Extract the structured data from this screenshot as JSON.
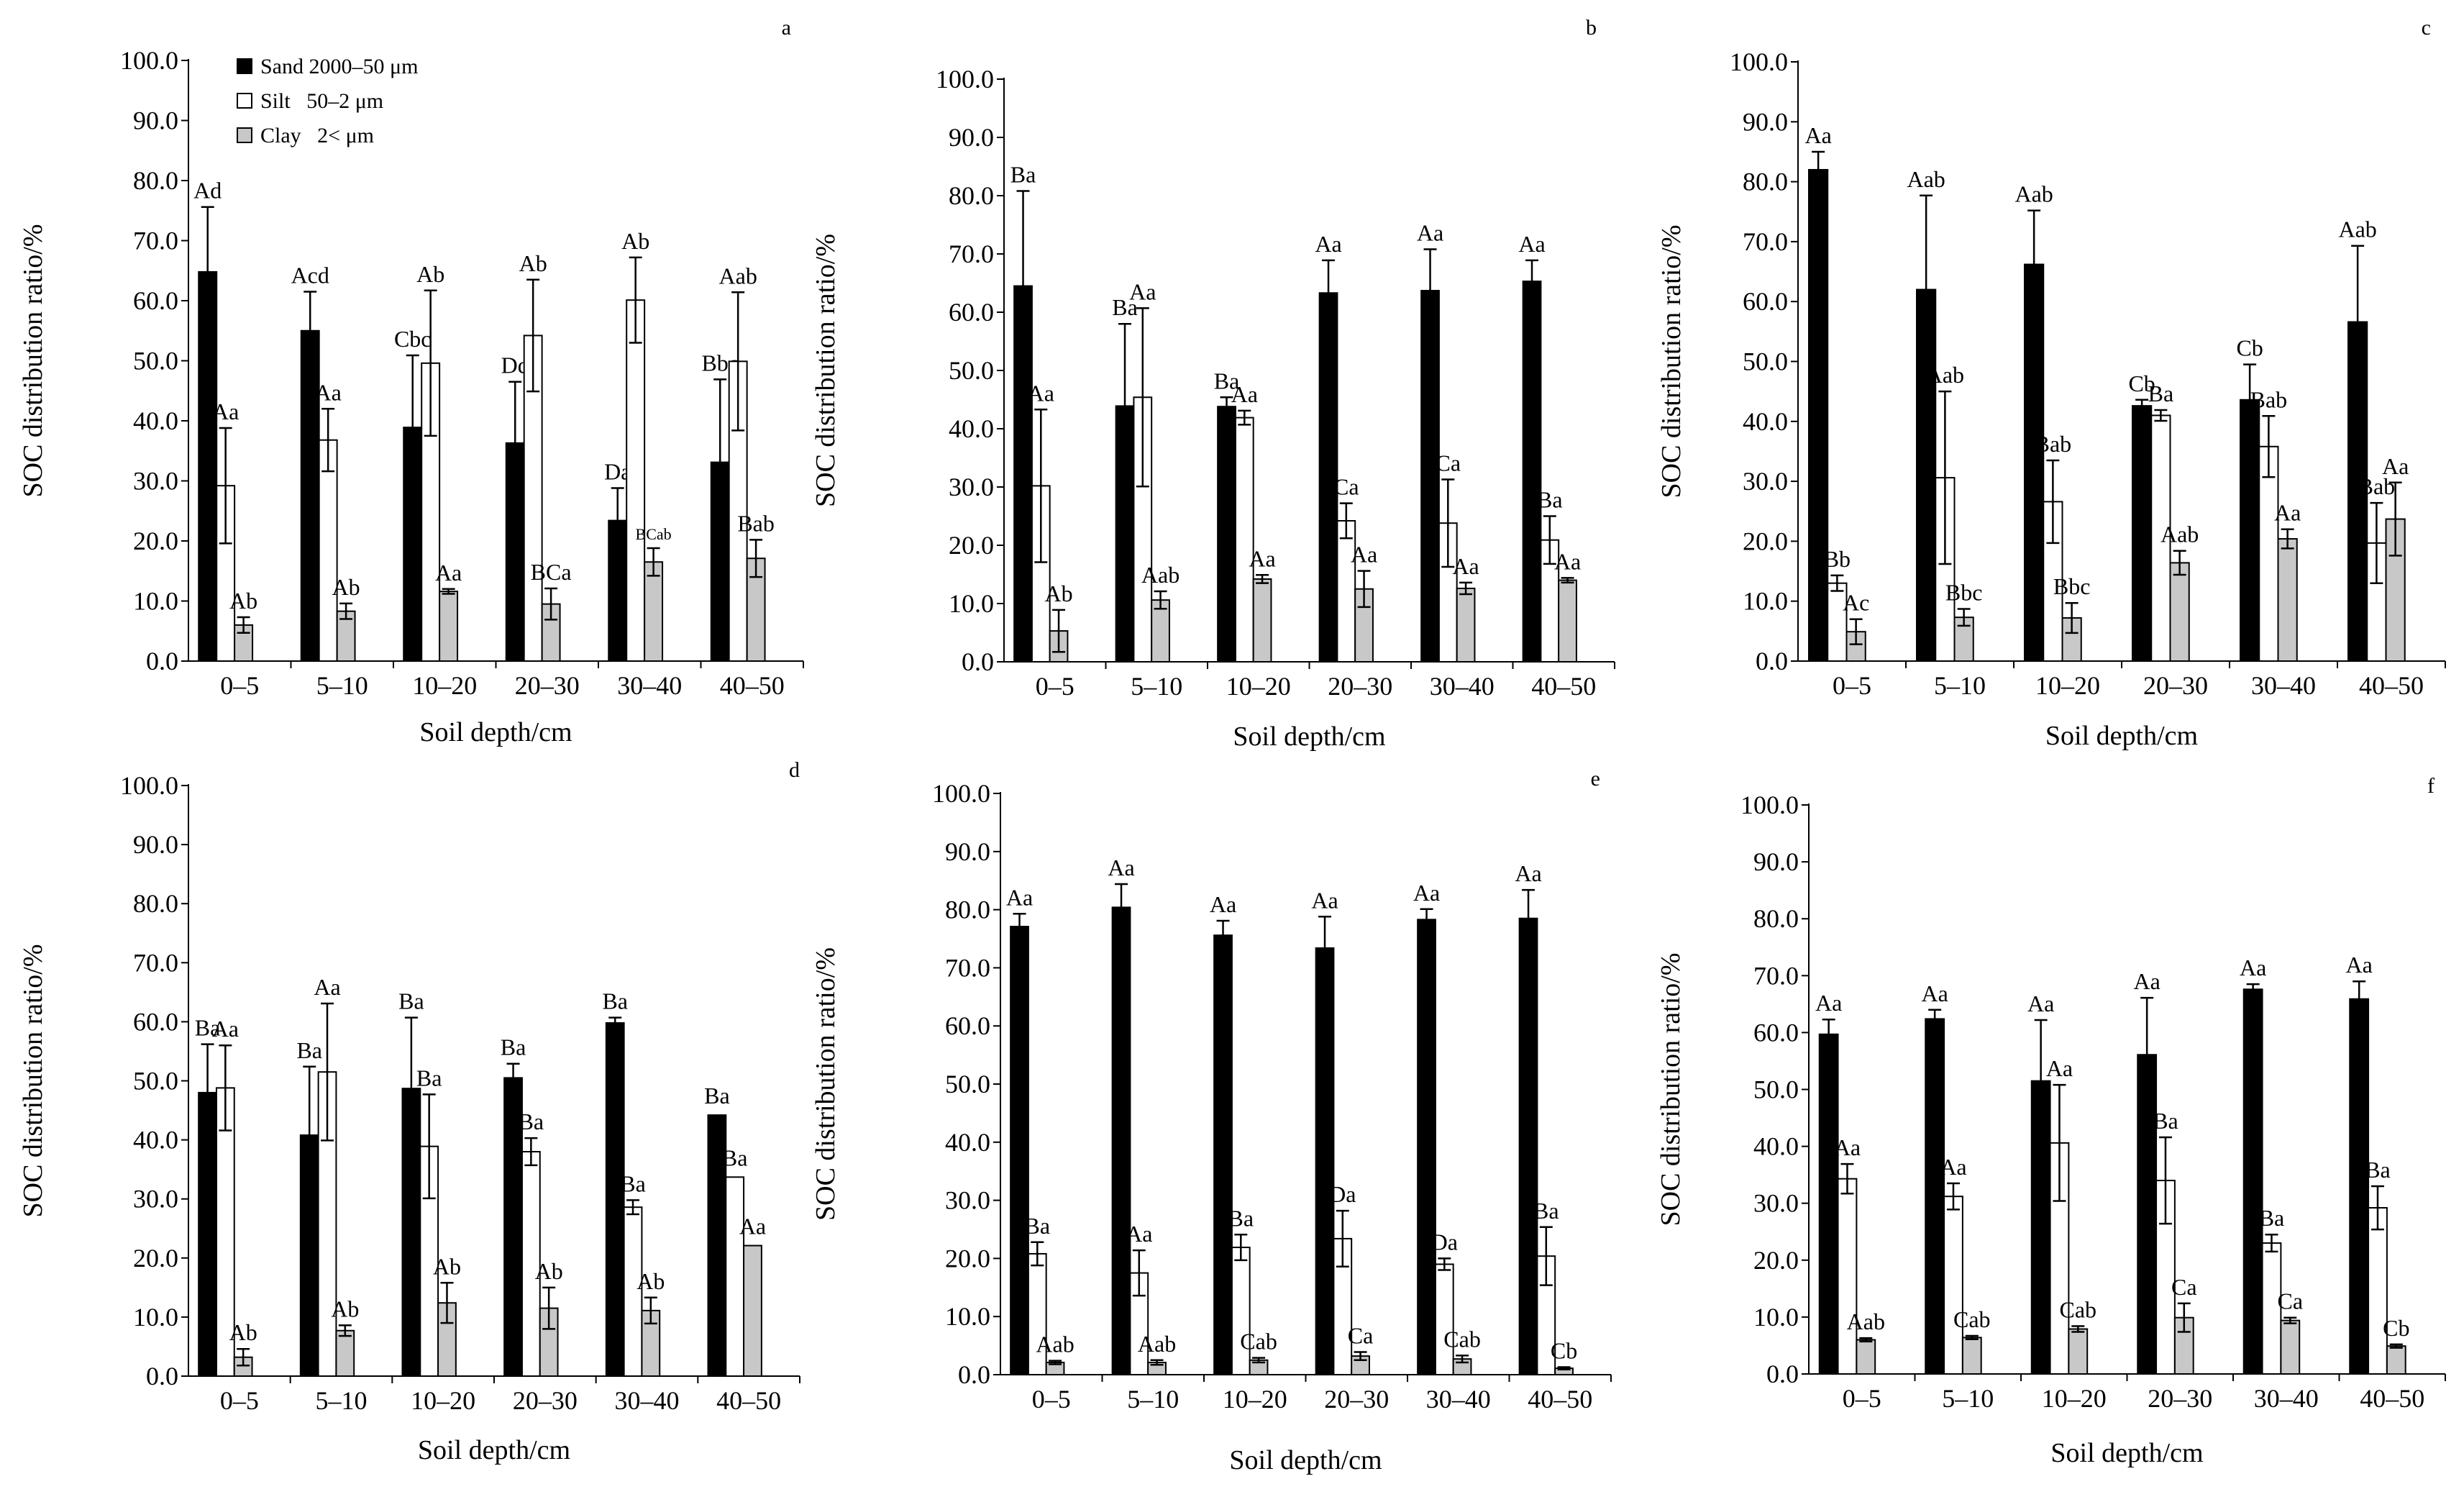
{
  "legend": [
    {
      "label": "Sand 2000–50 μm",
      "color": "#000000"
    },
    {
      "label": "Silt   50–2 μm",
      "color": "#ffffff"
    },
    {
      "label": "Clay   2< μm",
      "color": "#c8c8c8"
    }
  ],
  "chart_data": [
    {
      "type": "bar",
      "panel": "a",
      "categories": [
        "0–5",
        "5–10",
        "10–20",
        "20–30",
        "30–40",
        "40–50"
      ],
      "xlabel": "Soil depth/cm",
      "ylabel": "SOC distribution ratio/%",
      "ylim": [
        0,
        100
      ],
      "yticks": [
        "0.0",
        "10.0",
        "20.0",
        "30.0",
        "40.0",
        "50.0",
        "60.0",
        "70.0",
        "80.0",
        "90.0",
        "100.0"
      ],
      "series": [
        {
          "name": "Sand 2000–50 μm",
          "values": [
            64.8,
            55.0,
            38.9,
            36.3,
            23.4,
            33.1
          ],
          "errors": [
            10.8,
            6.5,
            12.0,
            10.2,
            5.4,
            13.8
          ],
          "labels": [
            "Ad",
            "Acd",
            "Cbc",
            "Dd",
            "Da",
            "Bbc"
          ]
        },
        {
          "name": "Silt 50–2 μm",
          "values": [
            29.2,
            36.8,
            49.6,
            54.2,
            60.1,
            49.9
          ],
          "errors": [
            9.6,
            5.2,
            12.1,
            9.3,
            7.1,
            11.5
          ],
          "labels": [
            "Aa",
            "Aa",
            "Ab",
            "Ab",
            "Ab",
            "Aab"
          ]
        },
        {
          "name": "Clay 2< μm",
          "values": [
            6.0,
            8.3,
            11.6,
            9.5,
            16.5,
            17.1
          ],
          "errors": [
            1.3,
            1.3,
            0.4,
            2.6,
            2.3,
            3.1
          ],
          "labels": [
            "Ab",
            "Ab",
            "Aa",
            "BCa",
            "BCab",
            "Bab"
          ]
        }
      ]
    },
    {
      "type": "bar",
      "panel": "b",
      "categories": [
        "0–5",
        "5–10",
        "10–20",
        "20–30",
        "30–40",
        "40–50"
      ],
      "xlabel": "Soil depth/cm",
      "ylabel": "SOC distribution ratio/%",
      "ylim": [
        0,
        100
      ],
      "yticks": [
        "0.0",
        "10.0",
        "20.0",
        "30.0",
        "40.0",
        "50.0",
        "60.0",
        "70.0",
        "80.0",
        "90.0",
        "100.0"
      ],
      "series": [
        {
          "name": "Sand 2000–50 μm",
          "values": [
            64.5,
            43.9,
            43.8,
            63.3,
            63.7,
            65.3
          ],
          "errors": [
            16.3,
            14.1,
            1.6,
            5.6,
            7.1,
            3.6
          ],
          "labels": [
            "Ba",
            "Ba",
            "Ba",
            "Aa",
            "Aa",
            "Aa"
          ]
        },
        {
          "name": "Silt 50–2 μm",
          "values": [
            30.2,
            45.4,
            41.9,
            24.2,
            23.8,
            20.9
          ],
          "errors": [
            13.1,
            15.3,
            1.2,
            3.0,
            7.5,
            4.1
          ],
          "labels": [
            "Aa",
            "Aa",
            "Aa",
            "Ca",
            "Ca",
            "Ba"
          ]
        },
        {
          "name": "Clay 2< μm",
          "values": [
            5.3,
            10.6,
            14.2,
            12.5,
            12.6,
            14.0
          ],
          "errors": [
            3.6,
            1.5,
            0.7,
            3.1,
            1.0,
            0.4
          ],
          "labels": [
            "Ab",
            "Aab",
            "Aa",
            "Aa",
            "Aa",
            "Aa"
          ]
        }
      ]
    },
    {
      "type": "bar",
      "panel": "c",
      "categories": [
        "0–5",
        "5–10",
        "10–20",
        "20–30",
        "30–40",
        "40–50"
      ],
      "xlabel": "Soil depth/cm",
      "ylabel": "SOC distribution ratio/%",
      "ylim": [
        0,
        100
      ],
      "yticks": [
        "0.0",
        "10.0",
        "20.0",
        "30.0",
        "40.0",
        "50.0",
        "60.0",
        "70.0",
        "80.0",
        "90.0",
        "100.0"
      ],
      "series": [
        {
          "name": "Sand 2000–50 μm",
          "values": [
            82.0,
            62.0,
            66.2,
            42.6,
            43.6,
            56.6
          ],
          "errors": [
            3.0,
            15.7,
            9.0,
            1.0,
            5.9,
            12.7
          ],
          "labels": [
            "Aa",
            "Aab",
            "Aab",
            "Cb",
            "Cb",
            "Aab"
          ]
        },
        {
          "name": "Silt 50–2 μm",
          "values": [
            13.0,
            30.6,
            26.6,
            41.0,
            35.8,
            19.7
          ],
          "errors": [
            1.3,
            14.4,
            6.9,
            0.9,
            5.1,
            6.7
          ],
          "labels": [
            "Bb",
            "Aab",
            "Bab",
            "Ba",
            "Bab",
            "Bab"
          ]
        },
        {
          "name": "Clay 2< μm",
          "values": [
            4.9,
            7.3,
            7.2,
            16.4,
            20.4,
            23.7
          ],
          "errors": [
            2.1,
            1.4,
            2.5,
            2.0,
            1.6,
            6.1
          ],
          "labels": [
            "Ac",
            "Bbc",
            "Bbc",
            "Aab",
            "Aa",
            "Aa"
          ]
        }
      ]
    },
    {
      "type": "bar",
      "panel": "d",
      "categories": [
        "0–5",
        "5–10",
        "10–20",
        "20–30",
        "30–40",
        "40–50"
      ],
      "xlabel": "Soil depth/cm",
      "ylabel": "SOC distribution ratio/%",
      "ylim": [
        0,
        100
      ],
      "yticks": [
        "0.0",
        "10.0",
        "20.0",
        "30.0",
        "40.0",
        "50.0",
        "60.0",
        "70.0",
        "80.0",
        "90.0",
        "100.0"
      ],
      "series": [
        {
          "name": "Sand 2000–50 μm",
          "values": [
            48.0,
            40.8,
            48.7,
            50.5,
            59.8,
            44.2
          ],
          "errors": [
            8.2,
            11.6,
            12.0,
            2.4,
            0.9,
            0
          ],
          "labels": [
            "Ba",
            "Ba",
            "Ba",
            "Ba",
            "Ba",
            "Ba"
          ]
        },
        {
          "name": "Silt 50–2 μm",
          "values": [
            48.8,
            51.5,
            38.9,
            38.0,
            28.6,
            33.7
          ],
          "errors": [
            7.2,
            11.6,
            8.8,
            2.3,
            1.2,
            0
          ],
          "labels": [
            "Aa",
            "Aa",
            "Ba",
            "Ba",
            "Ba",
            "Ba"
          ]
        },
        {
          "name": "Clay 2< μm",
          "values": [
            3.2,
            7.7,
            12.4,
            11.5,
            11.1,
            22.1
          ],
          "errors": [
            1.4,
            0.9,
            3.4,
            3.5,
            2.2,
            0
          ],
          "labels": [
            "Ab",
            "Ab",
            "Ab",
            "Ab",
            "Ab",
            "Aa"
          ]
        }
      ]
    },
    {
      "type": "bar",
      "panel": "e",
      "categories": [
        "0–5",
        "5–10",
        "10–20",
        "20–30",
        "30–40",
        "40–50"
      ],
      "xlabel": "Soil depth/cm",
      "ylabel": "SOC distribution ratio/%",
      "ylim": [
        0,
        100
      ],
      "yticks": [
        "0.0",
        "10.0",
        "20.0",
        "30.0",
        "40.0",
        "50.0",
        "60.0",
        "70.0",
        "80.0",
        "90.0",
        "100.0"
      ],
      "series": [
        {
          "name": "Sand 2000–50 μm",
          "values": [
            77.1,
            80.4,
            75.6,
            73.4,
            78.3,
            78.5
          ],
          "errors": [
            2.2,
            4.0,
            2.5,
            5.4,
            1.8,
            4.9
          ],
          "labels": [
            "Aa",
            "Aa",
            "Aa",
            "Aa",
            "Aa",
            "Aa"
          ]
        },
        {
          "name": "Silt 50–2 μm",
          "values": [
            20.8,
            17.5,
            21.9,
            23.4,
            19.0,
            20.4
          ],
          "errors": [
            2.0,
            3.9,
            2.2,
            4.8,
            1.0,
            5.0
          ],
          "labels": [
            "Ba",
            "Aa",
            "Ba",
            "Da",
            "Da",
            "Ba"
          ]
        },
        {
          "name": "Clay 2< μm",
          "values": [
            2.1,
            2.1,
            2.5,
            3.2,
            2.7,
            1.1
          ],
          "errors": [
            0.3,
            0.4,
            0.4,
            0.7,
            0.6,
            0.2
          ],
          "labels": [
            "Aab",
            "Aab",
            "Cab",
            "Ca",
            "Cab",
            "Cb"
          ]
        }
      ]
    },
    {
      "type": "bar",
      "panel": "f",
      "categories": [
        "0–5",
        "5–10",
        "10–20",
        "20–30",
        "30–40",
        "40–50"
      ],
      "xlabel": "Soil depth/cm",
      "ylabel": "SOC distribution ratio/%",
      "ylim": [
        0,
        100
      ],
      "yticks": [
        "0.0",
        "10.0",
        "20.0",
        "30.0",
        "40.0",
        "50.0",
        "60.0",
        "70.0",
        "80.0",
        "90.0",
        "100.0"
      ],
      "series": [
        {
          "name": "Sand 2000–50 μm",
          "values": [
            59.7,
            62.4,
            51.5,
            56.1,
            67.6,
            65.9
          ],
          "errors": [
            2.6,
            1.6,
            10.7,
            10.0,
            0.9,
            3.1
          ],
          "labels": [
            "Aa",
            "Aa",
            "Aa",
            "Aa",
            "Aa",
            "Aa"
          ]
        },
        {
          "name": "Silt 50–2 μm",
          "values": [
            34.3,
            31.2,
            40.6,
            34.0,
            23.0,
            29.2
          ],
          "errors": [
            2.6,
            2.3,
            10.2,
            7.6,
            1.5,
            3.8
          ],
          "labels": [
            "Aa",
            "Aa",
            "Aa",
            "Ba",
            "Ba",
            "Ba"
          ]
        },
        {
          "name": "Clay 2< μm",
          "values": [
            6.0,
            6.4,
            7.9,
            9.9,
            9.4,
            4.9
          ],
          "errors": [
            0.3,
            0.3,
            0.5,
            2.5,
            0.5,
            0.3
          ],
          "labels": [
            "Aab",
            "Cab",
            "Cab",
            "Ca",
            "Ca",
            "Cb"
          ]
        }
      ]
    }
  ]
}
